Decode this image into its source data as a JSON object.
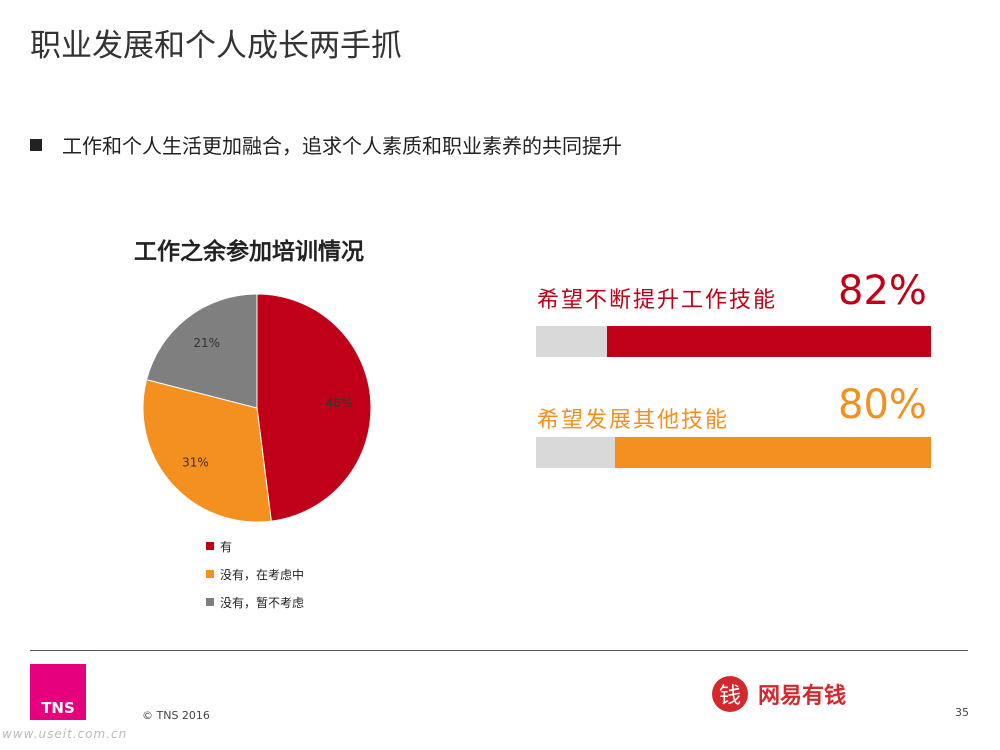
{
  "slide": {
    "title": "职业发展和个人成长两手抓",
    "bullet": "工作和个人生活更加融合，追求个人素质和职业素养的共同提升"
  },
  "chart_data": {
    "type": "pie",
    "title": "工作之余参加培训情况",
    "slices": [
      {
        "name": "有",
        "value": 48,
        "label": "48%",
        "color": "#c00018"
      },
      {
        "name": "没有，在考虑中",
        "value": 31,
        "label": "31%",
        "color": "#f39020"
      },
      {
        "name": "没有，暂不考虑",
        "value": 21,
        "label": "21%",
        "color": "#7f7f7f"
      }
    ],
    "legend_position": "bottom"
  },
  "stats": [
    {
      "label": "希望不断提升工作技能",
      "value_text": "82%",
      "value": 82,
      "color": "#c00018"
    },
    {
      "label": "希望发展其他技能",
      "value_text": "80%",
      "value": 80,
      "color": "#f39020"
    }
  ],
  "footer": {
    "logo_text": "TNS",
    "copyright": "© TNS 2016",
    "brand_icon": "钱",
    "brand_name": "网易有钱",
    "page_number": "35",
    "watermark": "www.useit.com.cn"
  }
}
